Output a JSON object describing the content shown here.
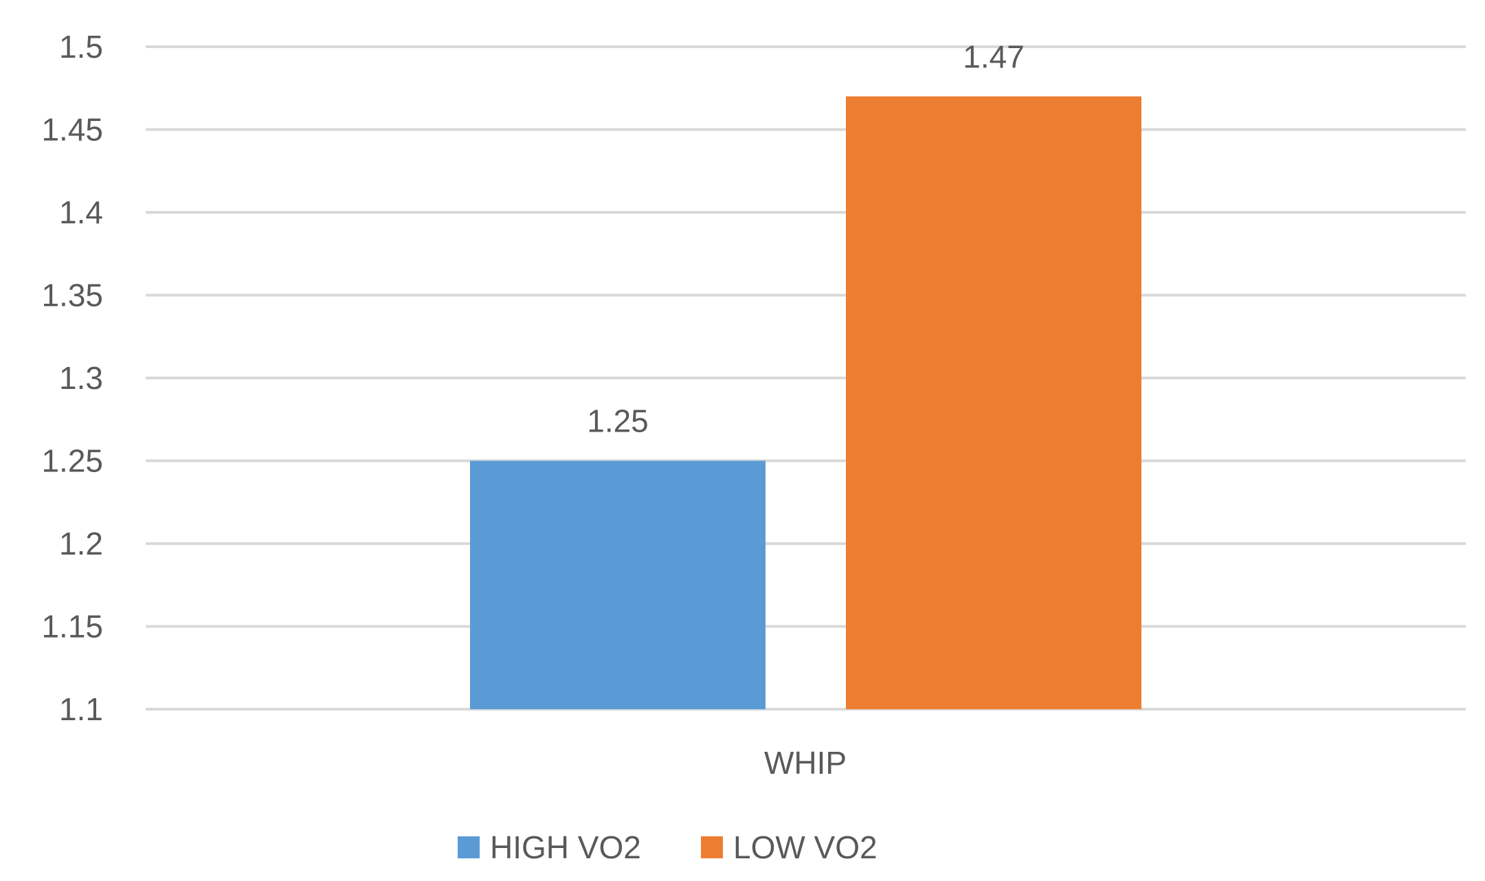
{
  "chart_data": {
    "type": "bar",
    "title": "",
    "xlabel": "",
    "ylabel": "",
    "categories": [
      "WHIP"
    ],
    "series": [
      {
        "name": "HIGH VO2",
        "color": "#5B9BD5",
        "values": [
          1.25
        ]
      },
      {
        "name": "LOW VO2",
        "color": "#ED7D31",
        "values": [
          1.47
        ]
      }
    ],
    "ylim": [
      1.1,
      1.5
    ],
    "yticks": [
      "1.1",
      "1.15",
      "1.2",
      "1.25",
      "1.3",
      "1.35",
      "1.4",
      "1.45",
      "1.5"
    ],
    "data_labels": [
      "1.25",
      "1.47"
    ],
    "grid": true,
    "legend_position": "bottom-center",
    "gridline_color": "#D9D9D9"
  }
}
